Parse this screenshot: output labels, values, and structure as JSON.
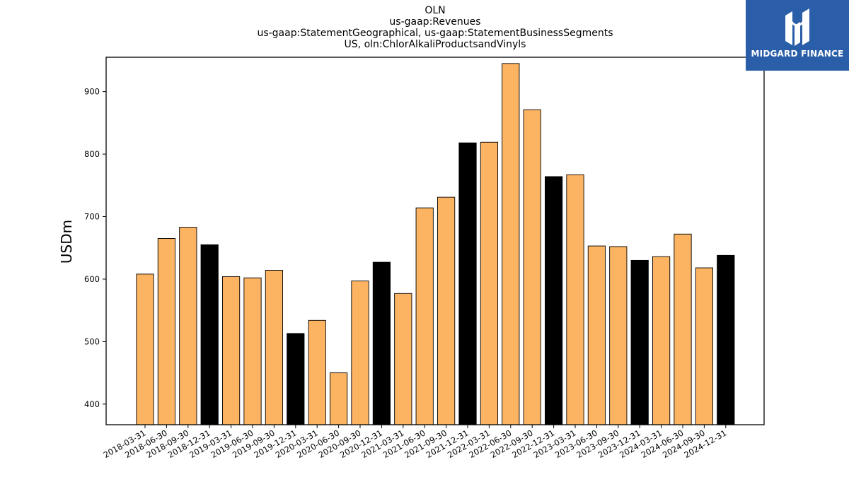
{
  "chart_data": {
    "type": "bar",
    "title_lines": [
      "OLN",
      "us-gaap:Revenues",
      "us-gaap:StatementGeographical, us-gaap:StatementBusinessSegments",
      "US, oln:ChlorAlkaliProductsandVinyls"
    ],
    "xlabel": "",
    "ylabel": "USDm",
    "ylim": [
      367,
      955
    ],
    "yticks": [
      400,
      500,
      600,
      700,
      800,
      900
    ],
    "grid": false,
    "colors": {
      "quarter": "#fdb462",
      "year_end": "#000000",
      "edge": "#000000"
    },
    "categories": [
      "2018-03-31",
      "2018-06-30",
      "2018-09-30",
      "2018-12-31",
      "2019-03-31",
      "2019-06-30",
      "2019-09-30",
      "2019-12-31",
      "2020-03-31",
      "2020-06-30",
      "2020-09-30",
      "2020-12-31",
      "2021-03-31",
      "2021-06-30",
      "2021-09-30",
      "2021-12-31",
      "2022-03-31",
      "2022-06-30",
      "2022-09-30",
      "2022-12-31",
      "2023-03-31",
      "2023-06-30",
      "2023-09-30",
      "2023-12-31",
      "2024-03-31",
      "2024-06-30",
      "2024-09-30",
      "2024-12-31"
    ],
    "values": [
      608,
      665,
      683,
      655,
      604,
      602,
      614,
      513,
      534,
      450,
      597,
      627,
      577,
      714,
      731,
      818,
      819,
      945,
      871,
      764,
      767,
      653,
      652,
      630,
      636,
      672,
      618,
      638
    ]
  },
  "logo": {
    "text": "MIDGARD FINANCE"
  }
}
